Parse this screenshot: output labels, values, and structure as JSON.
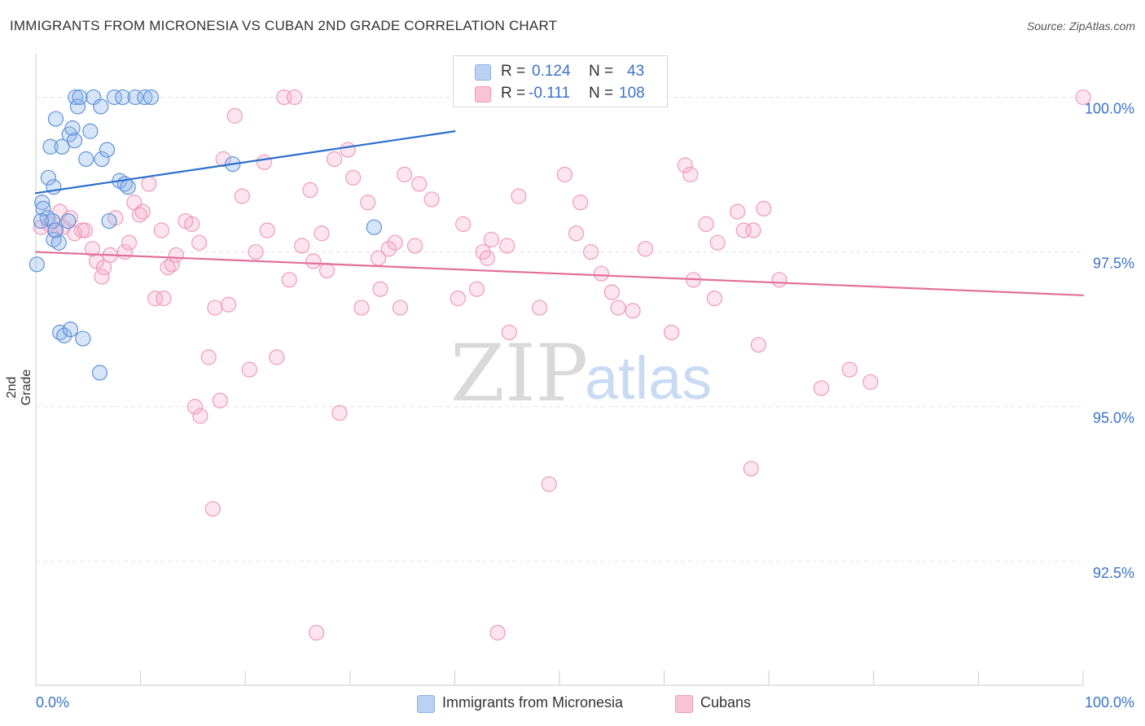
{
  "title": "IMMIGRANTS FROM MICRONESIA VS CUBAN 2ND GRADE CORRELATION CHART",
  "source": "Source: ZipAtlas.com",
  "watermark": {
    "zip": "ZIP",
    "atlas": "atlas"
  },
  "legend_top": {
    "rows": [
      {
        "r_label": "R = ",
        "r_value": "0.124",
        "n_label": "N = ",
        "n_value": "43",
        "color": "#6fa0e0"
      },
      {
        "r_label": "R = ",
        "r_value": "-0.111",
        "n_label": "N = ",
        "n_value": "108",
        "color": "#f08cb0"
      }
    ]
  },
  "chart_data": {
    "type": "scatter",
    "title": "IMMIGRANTS FROM MICRONESIA VS CUBAN 2ND GRADE CORRELATION CHART",
    "xlabel": "",
    "ylabel": "2nd Grade",
    "xlim": [
      0,
      100
    ],
    "ylim": [
      90.5,
      100.65
    ],
    "x_tick_labels": [
      "0.0%",
      "100.0%"
    ],
    "y_ticks": [
      92.5,
      95.0,
      97.5,
      100.0
    ],
    "y_tick_labels": [
      "92.5%",
      "95.0%",
      "97.5%",
      "100.0%"
    ],
    "grid": true,
    "legend": "bottom",
    "series": [
      {
        "name": "Immigrants from Micronesia",
        "color": "#6fa0e0",
        "line_color": "#2a6fce",
        "trend": [
          [
            0.0,
            98.45
          ],
          [
            40.0,
            99.45
          ]
        ],
        "points": [
          [
            0.1,
            97.3
          ],
          [
            0.6,
            98.3
          ],
          [
            0.7,
            98.2
          ],
          [
            1.1,
            98.05
          ],
          [
            1.2,
            98.7
          ],
          [
            1.4,
            99.2
          ],
          [
            1.6,
            98.0
          ],
          [
            1.7,
            98.55
          ],
          [
            1.7,
            97.7
          ],
          [
            1.9,
            97.85
          ],
          [
            1.9,
            99.65
          ],
          [
            2.2,
            97.65
          ],
          [
            2.3,
            96.2
          ],
          [
            2.5,
            99.2
          ],
          [
            2.7,
            96.15
          ],
          [
            3.1,
            98.0
          ],
          [
            3.2,
            99.4
          ],
          [
            3.3,
            96.25
          ],
          [
            3.5,
            99.5
          ],
          [
            3.7,
            99.3
          ],
          [
            3.8,
            100.0
          ],
          [
            4.0,
            99.85
          ],
          [
            4.2,
            100.0
          ],
          [
            4.5,
            96.1
          ],
          [
            4.8,
            99.0
          ],
          [
            5.2,
            99.45
          ],
          [
            5.5,
            100.0
          ],
          [
            6.2,
            99.85
          ],
          [
            6.3,
            99.0
          ],
          [
            6.8,
            99.15
          ],
          [
            7.0,
            98.0
          ],
          [
            7.5,
            100.0
          ],
          [
            8.0,
            98.65
          ],
          [
            8.3,
            100.0
          ],
          [
            8.5,
            98.6
          ],
          [
            8.8,
            98.55
          ],
          [
            9.5,
            100.0
          ],
          [
            10.4,
            100.0
          ],
          [
            11.0,
            100.0
          ],
          [
            18.8,
            98.92
          ],
          [
            6.1,
            95.55
          ],
          [
            32.3,
            97.9
          ],
          [
            0.5,
            98.0
          ]
        ]
      },
      {
        "name": "Cubans",
        "color": "#f08cb0",
        "line_color": "#e26f99",
        "trend": [
          [
            0.0,
            97.5
          ],
          [
            100.0,
            96.8
          ]
        ],
        "points": [
          [
            0.5,
            97.9
          ],
          [
            1.3,
            97.95
          ],
          [
            1.8,
            97.85
          ],
          [
            2.3,
            98.15
          ],
          [
            2.6,
            97.9
          ],
          [
            3.3,
            98.05
          ],
          [
            3.7,
            97.8
          ],
          [
            4.4,
            97.85
          ],
          [
            4.7,
            97.85
          ],
          [
            5.4,
            97.55
          ],
          [
            5.8,
            97.35
          ],
          [
            6.3,
            97.1
          ],
          [
            6.5,
            97.25
          ],
          [
            7.1,
            97.45
          ],
          [
            7.6,
            98.05
          ],
          [
            8.5,
            97.5
          ],
          [
            8.9,
            97.65
          ],
          [
            9.4,
            98.3
          ],
          [
            9.9,
            98.1
          ],
          [
            10.2,
            98.15
          ],
          [
            10.8,
            98.6
          ],
          [
            11.4,
            96.75
          ],
          [
            12.0,
            97.85
          ],
          [
            12.2,
            96.75
          ],
          [
            12.6,
            97.25
          ],
          [
            13.0,
            97.3
          ],
          [
            13.4,
            97.45
          ],
          [
            14.3,
            98.0
          ],
          [
            14.9,
            97.95
          ],
          [
            15.2,
            95.0
          ],
          [
            15.6,
            97.65
          ],
          [
            15.7,
            94.85
          ],
          [
            16.5,
            95.8
          ],
          [
            16.9,
            93.35
          ],
          [
            17.1,
            96.6
          ],
          [
            17.6,
            95.1
          ],
          [
            17.9,
            99.0
          ],
          [
            18.4,
            96.65
          ],
          [
            19.0,
            99.7
          ],
          [
            19.7,
            98.4
          ],
          [
            20.4,
            95.6
          ],
          [
            21.0,
            97.5
          ],
          [
            21.8,
            98.95
          ],
          [
            22.1,
            97.85
          ],
          [
            23.0,
            95.8
          ],
          [
            23.7,
            100.0
          ],
          [
            24.2,
            97.05
          ],
          [
            24.7,
            100.0
          ],
          [
            25.4,
            97.6
          ],
          [
            26.2,
            98.5
          ],
          [
            26.5,
            97.35
          ],
          [
            26.8,
            91.35
          ],
          [
            27.3,
            97.8
          ],
          [
            27.8,
            97.2
          ],
          [
            28.5,
            99.0
          ],
          [
            29.0,
            94.9
          ],
          [
            29.8,
            99.15
          ],
          [
            30.3,
            98.7
          ],
          [
            31.1,
            96.6
          ],
          [
            31.7,
            98.3
          ],
          [
            32.7,
            97.4
          ],
          [
            32.9,
            96.9
          ],
          [
            33.7,
            97.55
          ],
          [
            34.3,
            97.65
          ],
          [
            34.8,
            96.6
          ],
          [
            35.2,
            98.75
          ],
          [
            36.2,
            97.6
          ],
          [
            36.6,
            98.6
          ],
          [
            37.8,
            98.35
          ],
          [
            40.3,
            96.75
          ],
          [
            40.8,
            97.95
          ],
          [
            42.1,
            96.9
          ],
          [
            42.7,
            97.5
          ],
          [
            43.1,
            97.4
          ],
          [
            43.5,
            97.7
          ],
          [
            44.1,
            91.35
          ],
          [
            45.0,
            97.6
          ],
          [
            45.2,
            96.2
          ],
          [
            46.1,
            98.4
          ],
          [
            48.1,
            96.6
          ],
          [
            49.0,
            93.75
          ],
          [
            50.5,
            98.75
          ],
          [
            51.6,
            97.8
          ],
          [
            52.0,
            98.3
          ],
          [
            53.0,
            97.5
          ],
          [
            54.0,
            97.15
          ],
          [
            55.0,
            96.85
          ],
          [
            55.6,
            96.6
          ],
          [
            57.0,
            96.55
          ],
          [
            58.2,
            97.55
          ],
          [
            60.7,
            96.2
          ],
          [
            62.0,
            98.9
          ],
          [
            62.5,
            98.75
          ],
          [
            62.8,
            97.05
          ],
          [
            64.0,
            97.95
          ],
          [
            64.8,
            96.75
          ],
          [
            65.1,
            97.65
          ],
          [
            67.0,
            98.15
          ],
          [
            67.6,
            97.85
          ],
          [
            68.3,
            94.0
          ],
          [
            69.0,
            96.0
          ],
          [
            69.5,
            98.2
          ],
          [
            71.0,
            97.05
          ],
          [
            75.0,
            95.3
          ],
          [
            77.7,
            95.6
          ],
          [
            79.7,
            95.4
          ],
          [
            100.0,
            100.0
          ],
          [
            68.5,
            97.85
          ]
        ]
      }
    ]
  },
  "legend_bottom": {
    "items": [
      {
        "label": "Immigrants from Micronesia",
        "color": "#6fa0e0"
      },
      {
        "label": "Cubans",
        "color": "#f08cb0"
      }
    ]
  }
}
